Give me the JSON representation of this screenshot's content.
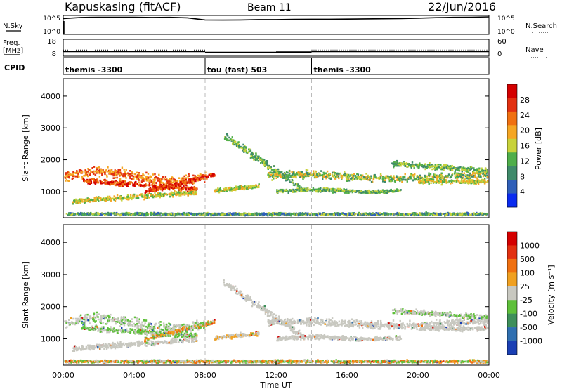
{
  "header": {
    "station": "Kapuskasing (fitACF)",
    "beam": "Beam 11",
    "date": "22/Jun/2016"
  },
  "chart_data": [
    {
      "type": "line",
      "panel": "noise",
      "left_label": "N.Sky",
      "right_label": "N.Search",
      "left_ticks": [
        "10^5",
        "10^0"
      ],
      "right_ticks": [
        "10^5",
        "10^0"
      ],
      "series": [
        {
          "values": [
            4.6,
            4.9,
            5.0,
            5.0,
            5.0,
            4.9,
            4.95,
            4.8,
            4.2,
            4.15,
            4.2,
            4.3,
            4.3,
            4.35,
            4.4,
            4.4,
            4.45,
            4.5,
            4.55,
            4.6,
            4.7,
            4.85,
            4.95,
            5.0,
            5.1
          ]
        }
      ],
      "x": [
        0,
        1,
        2,
        3,
        4,
        5,
        6,
        7,
        8,
        9,
        10,
        11,
        12,
        13,
        14,
        15,
        16,
        17,
        18,
        19,
        20,
        21,
        22,
        23,
        24
      ],
      "ylim": [
        0,
        5.5
      ]
    },
    {
      "type": "line",
      "panel": "frequency",
      "left_label_1": "Freq.",
      "left_label_2": "[MHz]",
      "right_label": "Nave",
      "left_ticks": [
        "18",
        "8"
      ],
      "right_ticks": [
        "60",
        "0"
      ],
      "segments": [
        {
          "from": 0,
          "to": 8,
          "freq": 10.8,
          "nave": 22
        },
        {
          "from": 8,
          "to": 12,
          "freq": 10.2,
          "nave": 12
        },
        {
          "from": 12,
          "to": 14,
          "freq": 10.4,
          "nave": 12
        },
        {
          "from": 14,
          "to": 24,
          "freq": 10.8,
          "nave": 22
        }
      ],
      "ylim": [
        8,
        18
      ]
    },
    {
      "type": "table",
      "panel": "cpid",
      "label": "CPID",
      "segments": [
        {
          "from": 0,
          "to": 8,
          "name": "themis -3300"
        },
        {
          "from": 8,
          "to": 14,
          "name": "tou (fast) 503"
        },
        {
          "from": 14,
          "to": 24,
          "name": "themis -3300"
        }
      ]
    },
    {
      "type": "heatmap",
      "panel": "power",
      "ylabel": "Slant Range [km]",
      "yticks": [
        1000,
        2000,
        3000,
        4000
      ],
      "ylim": [
        180,
        4550
      ],
      "colorbar_label": "Power [dB]",
      "colorbar_ticks": [
        "4",
        "8",
        "12",
        "16",
        "20",
        "24",
        "28"
      ],
      "colors": [
        "#0a2bf0",
        "#2f5fb8",
        "#3f8a6a",
        "#4fae4a",
        "#c8d23a",
        "#f5a623",
        "#f07010",
        "#e23010",
        "#d40000"
      ]
    },
    {
      "type": "heatmap",
      "panel": "velocity",
      "ylabel": "Slant Range [km]",
      "yticks": [
        1000,
        2000,
        3000,
        4000
      ],
      "ylim": [
        180,
        4550
      ],
      "colorbar_label": "Velocity [m s⁻¹]",
      "colorbar_ticks": [
        "1000",
        "500",
        "100",
        "25",
        "-25",
        "-100",
        "-500",
        "-1000"
      ],
      "colors": [
        "#1a3fb4",
        "#2f6fb0",
        "#3e8f5a",
        "#5ec03a",
        "#c8c8c0",
        "#f0a020",
        "#f07010",
        "#e23010",
        "#d40000"
      ],
      "xlabel": "Time UT",
      "xticks": [
        "00:00",
        "04:00",
        "08:00",
        "12:00",
        "16:00",
        "20:00",
        "00:00"
      ],
      "xlim": [
        0,
        24
      ]
    }
  ]
}
